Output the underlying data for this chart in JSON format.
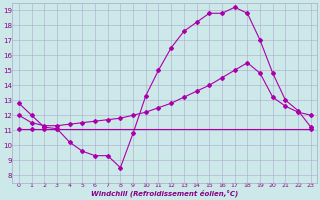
{
  "xlabel": "Windchill (Refroidissement éolien,°C)",
  "bg_color": "#cce8e8",
  "grid_color": "#aaaacc",
  "line_color": "#aa00aa",
  "xlim": [
    -0.5,
    23.5
  ],
  "ylim": [
    7.5,
    19.5
  ],
  "yticks": [
    8,
    9,
    10,
    11,
    12,
    13,
    14,
    15,
    16,
    17,
    18,
    19
  ],
  "xticks": [
    0,
    1,
    2,
    3,
    4,
    5,
    6,
    7,
    8,
    9,
    10,
    11,
    12,
    13,
    14,
    15,
    16,
    17,
    18,
    19,
    20,
    21,
    22,
    23
  ],
  "line1_x": [
    0,
    1,
    2,
    3,
    4,
    5,
    6,
    7,
    8,
    9,
    10,
    11,
    12,
    13,
    14,
    15,
    16,
    17,
    18,
    19,
    20,
    21,
    22,
    23
  ],
  "line1_y": [
    12.8,
    12.0,
    11.2,
    11.1,
    10.2,
    9.6,
    9.3,
    9.3,
    8.5,
    10.8,
    13.3,
    15.0,
    16.5,
    17.6,
    18.2,
    18.8,
    18.8,
    19.2,
    18.8,
    17.0,
    14.8,
    13.0,
    12.3,
    11.2
  ],
  "line2_x": [
    0,
    1,
    2,
    3,
    23
  ],
  "line2_y": [
    11.1,
    11.1,
    11.1,
    11.1,
    11.1
  ],
  "line3_x": [
    0,
    1,
    2,
    3,
    4,
    5,
    6,
    7,
    8,
    9,
    10,
    11,
    12,
    13,
    14,
    15,
    16,
    17,
    18,
    19,
    20,
    21,
    22,
    23
  ],
  "line3_y": [
    12.0,
    11.5,
    11.3,
    11.3,
    11.4,
    11.5,
    11.6,
    11.7,
    11.8,
    12.0,
    12.2,
    12.5,
    12.8,
    13.2,
    13.6,
    14.0,
    14.5,
    15.0,
    15.5,
    14.8,
    13.2,
    12.6,
    12.2,
    12.0
  ]
}
